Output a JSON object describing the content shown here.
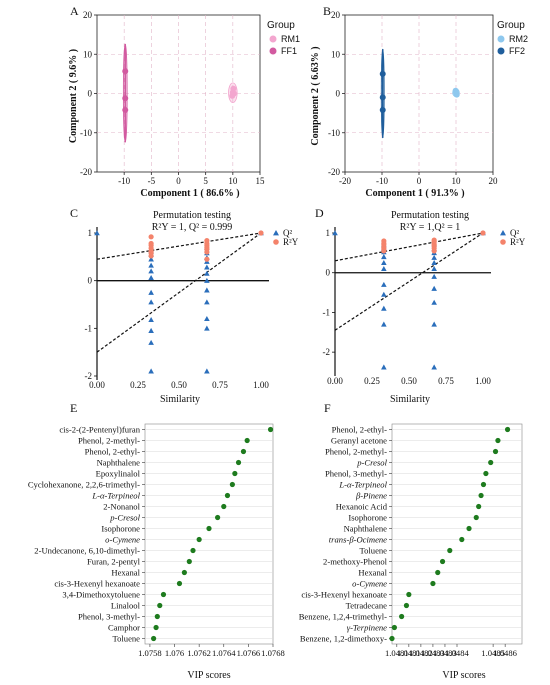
{
  "panels": [
    {
      "id": "A",
      "label": "A"
    },
    {
      "id": "B",
      "label": "B"
    },
    {
      "id": "C",
      "label": "C"
    },
    {
      "id": "D",
      "label": "D"
    },
    {
      "id": "E",
      "label": "E"
    },
    {
      "id": "F",
      "label": "F"
    }
  ],
  "chart_data": [
    {
      "panel": "A",
      "type": "scatter",
      "xlabel": "Component 1 ( 86.6% )",
      "ylabel": "Component 2 ( 9.6% )",
      "xlim": [
        -15,
        15
      ],
      "ylim": [
        -20,
        20
      ],
      "xticks": [
        -10,
        -5,
        0,
        5,
        10,
        15
      ],
      "yticks": [
        -20,
        -10,
        0,
        10,
        20
      ],
      "grid": true,
      "legend_title": "Group",
      "legend_position": "top-right",
      "series": [
        {
          "name": "RM1",
          "color": "#f3a6cf",
          "points": [
            [
              10,
              0.3
            ],
            [
              10.1,
              1.2
            ],
            [
              9.9,
              -0.6
            ],
            [
              10.2,
              0.0
            ]
          ],
          "ellipse": {
            "cx": 10,
            "cy": 0.2,
            "rx": 0.8,
            "ry": 2.5
          }
        },
        {
          "name": "FF1",
          "color": "#d25aa0",
          "points": [
            [
              -9.8,
              5.7
            ],
            [
              -9.8,
              -1.2
            ],
            [
              -9.8,
              -4.2
            ]
          ],
          "ellipse": {
            "cx": -9.8,
            "cy": 0.1,
            "rx": 0.35,
            "ry": 12.5
          }
        }
      ]
    },
    {
      "panel": "B",
      "type": "scatter",
      "xlabel": "Component 1 ( 91.3% )",
      "ylabel": "Component 2 ( 6.63% )",
      "xlim": [
        -20,
        20
      ],
      "ylim": [
        -20,
        20
      ],
      "xticks": [
        -20,
        -10,
        0,
        10,
        20
      ],
      "yticks": [
        -20,
        -10,
        0,
        10,
        20
      ],
      "grid": true,
      "legend_title": "Group",
      "legend_position": "top-right",
      "series": [
        {
          "name": "RM2",
          "color": "#8ec8ee",
          "points": [
            [
              10,
              0.3
            ],
            [
              10.2,
              -0.3
            ],
            [
              9.9,
              0.7
            ]
          ],
          "ellipse": {
            "cx": 10,
            "cy": 0.2,
            "rx": 0.9,
            "ry": 1.0
          }
        },
        {
          "name": "FF2",
          "color": "#1f5e9c",
          "points": [
            [
              -9.8,
              5.0
            ],
            [
              -9.8,
              -1.0
            ],
            [
              -9.8,
              -4.2
            ]
          ],
          "ellipse": {
            "cx": -9.8,
            "cy": 0,
            "rx": 0.4,
            "ry": 11.3
          }
        }
      ]
    },
    {
      "panel": "C",
      "type": "scatter",
      "title": "Permutation testing",
      "subtitle": "R²Y = 1, Q² = 0.999",
      "xlabel": "Similarity",
      "ylabel": "",
      "xlim": [
        0,
        1
      ],
      "ylim": [
        -2,
        1
      ],
      "xticks": [
        "0.00",
        "0.25",
        "0.50",
        "0.75",
        "1.00"
      ],
      "yticks": [
        -2,
        -1,
        0,
        1
      ],
      "legend": [
        {
          "name": "Q²",
          "color": "#2a6ebb",
          "marker": "triangle"
        },
        {
          "name": "R²Y",
          "color": "#f4836b",
          "marker": "circle"
        }
      ],
      "q2": {
        "x": [
          0,
          0.33,
          0.33,
          0.33,
          0.33,
          0.33,
          0.33,
          0.33,
          0.33,
          0.33,
          0.33,
          0.33,
          0.33,
          0.67,
          0.67,
          0.67,
          0.67,
          0.67,
          0.67,
          0.67,
          0.67,
          0.67,
          0.67,
          0.67,
          0.67,
          1.0
        ],
        "y": [
          1.0,
          0.55,
          0.45,
          0.32,
          0.2,
          0.06,
          -0.25,
          -0.45,
          -0.82,
          -1.05,
          -1.3,
          -1.9,
          0.62,
          0.58,
          0.48,
          0.4,
          0.28,
          0.15,
          0.0,
          -0.2,
          -0.45,
          -0.8,
          -1.0,
          -1.9,
          0.7,
          0.999
        ]
      },
      "r2y": {
        "x": [
          0.33,
          0.33,
          0.33,
          0.33,
          0.33,
          0.33,
          0.33,
          0.67,
          0.67,
          0.67,
          0.67,
          0.67,
          0.67,
          0.67,
          1.0
        ],
        "y": [
          0.92,
          0.78,
          0.74,
          0.68,
          0.62,
          0.58,
          0.52,
          0.84,
          0.78,
          0.74,
          0.7,
          0.66,
          0.6,
          0.45,
          1.0
        ]
      },
      "regression_lines": [
        {
          "name": "R²Y",
          "y_at_0": 0.45,
          "y_at_1": 1.0
        },
        {
          "name": "Q²",
          "y_at_0": -1.5,
          "y_at_1": 1.0
        }
      ]
    },
    {
      "panel": "D",
      "type": "scatter",
      "title": "Permutation testing",
      "subtitle": "R²Y = 1,Q² = 1",
      "xlabel": "Similarity",
      "ylabel": "",
      "xlim": [
        0,
        1
      ],
      "ylim": [
        -2.5,
        1
      ],
      "xticks": [
        "0.00",
        "0.25",
        "0.50",
        "0.75",
        "1.00"
      ],
      "yticks": [
        -2,
        -1,
        0,
        1
      ],
      "legend": [
        {
          "name": "Q²",
          "color": "#2a6ebb",
          "marker": "triangle"
        },
        {
          "name": "R²Y",
          "color": "#f4836b",
          "marker": "circle"
        }
      ],
      "q2": {
        "x": [
          0,
          0.33,
          0.33,
          0.33,
          0.33,
          0.33,
          0.33,
          0.33,
          0.33,
          0.33,
          0.33,
          0.33,
          0.67,
          0.67,
          0.67,
          0.67,
          0.67,
          0.67,
          0.67,
          0.67,
          0.67,
          0.67,
          0.67,
          1.0
        ],
        "y": [
          1.0,
          0.62,
          0.52,
          0.4,
          0.25,
          0.1,
          -0.3,
          -0.55,
          -0.9,
          -1.3,
          -2.38,
          0.7,
          0.6,
          0.5,
          0.38,
          0.25,
          0.1,
          -0.1,
          -0.4,
          -0.75,
          -1.3,
          -2.38,
          0.72,
          1.0
        ]
      },
      "r2y": {
        "x": [
          0.33,
          0.33,
          0.33,
          0.33,
          0.33,
          0.33,
          0.67,
          0.67,
          0.67,
          0.67,
          0.67,
          0.67,
          1.0
        ],
        "y": [
          0.8,
          0.74,
          0.7,
          0.64,
          0.6,
          0.55,
          0.82,
          0.78,
          0.72,
          0.68,
          0.62,
          0.55,
          1.0
        ]
      },
      "regression_lines": [
        {
          "name": "R²Y",
          "y_at_0": 0.3,
          "y_at_1": 1.0
        },
        {
          "name": "Q²",
          "y_at_0": -1.45,
          "y_at_1": 1.0
        }
      ]
    },
    {
      "panel": "E",
      "type": "scatter",
      "xlabel": "VIP scores",
      "xlim": [
        1.07576,
        1.0768
      ],
      "xtick_labels": [
        "1.0758",
        "1.076",
        "1.0762",
        "1.0764",
        "1.0766",
        "1.0768"
      ],
      "xtick_values": [
        1.0758,
        1.076,
        1.0762,
        1.0764,
        1.0766,
        1.0768
      ],
      "grid": true,
      "color": "#1e7b1e",
      "categories": [
        "cis-2-(2-Pentenyl)furan",
        "Phenol, 2-methyl-",
        "Phenol, 2-ethyl-",
        "Naphthalene",
        "Epoxylinalol",
        "Cyclohexanone, 2,2,6-trimethyl-",
        "L-α-Terpineol",
        "2-Nonanol",
        "p-Cresol",
        "Isophorone",
        "o-Cymene",
        "2-Undecanone, 6,10-dimethyl-",
        "Furan, 2-pentyl",
        "Hexanal",
        "cis-3-Hexenyl hexanoate",
        "3,4-Dimethoxytoluene",
        "Linalool",
        "Phenol, 3-methyl-",
        "Camphor",
        "Toluene"
      ],
      "values": [
        1.07678,
        1.07659,
        1.07656,
        1.07652,
        1.07649,
        1.07647,
        1.07643,
        1.0764,
        1.07635,
        1.07628,
        1.0762,
        1.07615,
        1.07612,
        1.07608,
        1.07604,
        1.07591,
        1.07588,
        1.07586,
        1.07585,
        1.07583
      ]
    },
    {
      "panel": "F",
      "type": "scatter",
      "xlabel": "VIP scores",
      "xlim": [
        1.04808,
        1.04862
      ],
      "xtick_labels": [
        "1.0481",
        "1.0481",
        "1.0482",
        "1.0483",
        "1.0483",
        "1.0484",
        "1.0485",
        "1.0486"
      ],
      "xtick_values": [
        1.0481,
        1.04815,
        1.0482,
        1.04825,
        1.0483,
        1.04835,
        1.0485,
        1.04855
      ],
      "grid": true,
      "color": "#1e7b1e",
      "categories": [
        "Phenol, 2-ethyl-",
        "Geranyl acetone",
        "Phenol, 2-methyl-",
        "p-Cresol",
        "Phenol, 3-methyl-",
        "L-α-Terpineol",
        "β-Pinene",
        "Hexanoic Acid",
        "Isophorone",
        "Naphthalene",
        "trans-β-Ocimene",
        "Toluene",
        "2-methoxy-Phenol",
        "Hexanal",
        "o-Cymene",
        "cis-3-Hexenyl hexanoate",
        "Tetradecane",
        "Benzene, 1,2,4-trimethyl-",
        "γ-Terpinene",
        "Benzene, 1,2-dimethoxy-"
      ],
      "values": [
        1.04856,
        1.04852,
        1.04851,
        1.04849,
        1.04847,
        1.04846,
        1.04845,
        1.04844,
        1.04843,
        1.0484,
        1.04837,
        1.04832,
        1.04829,
        1.04827,
        1.04825,
        1.04815,
        1.04814,
        1.04812,
        1.04809,
        1.04808
      ]
    }
  ]
}
